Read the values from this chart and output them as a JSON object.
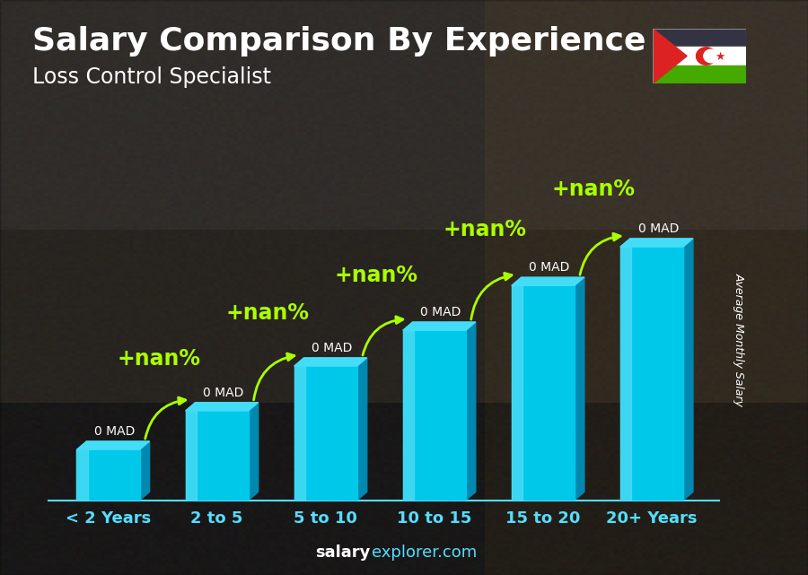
{
  "title": "Salary Comparison By Experience",
  "subtitle": "Loss Control Specialist",
  "ylabel": "Average Monthly Salary",
  "categories": [
    "< 2 Years",
    "2 to 5",
    "5 to 10",
    "10 to 15",
    "15 to 20",
    "20+ Years"
  ],
  "bar_heights": [
    0.17,
    0.3,
    0.45,
    0.57,
    0.72,
    0.85
  ],
  "labels": [
    "0 MAD",
    "0 MAD",
    "0 MAD",
    "0 MAD",
    "0 MAD",
    "0 MAD"
  ],
  "pct_label": "+nan%",
  "bar_front_color": "#00c8e8",
  "bar_light_color": "#55ddf5",
  "bar_dark_color": "#0088b0",
  "bar_top_color": "#44ddf8",
  "bg_color": "#3a3a4a",
  "title_color": "#ffffff",
  "subtitle_color": "#ffffff",
  "label_color": "#ffffff",
  "pct_color": "#aaff00",
  "arrow_color": "#aaff00",
  "watermark_bold": "salary",
  "watermark_light": "explorer.com",
  "title_fontsize": 26,
  "subtitle_fontsize": 17,
  "label_fontsize": 10,
  "pct_fontsize": 17,
  "xtick_fontsize": 13,
  "bar_width": 0.58,
  "ylim": [
    0,
    1.08
  ],
  "flag_stripes": [
    "#333344",
    "#ffffff",
    "#44aa00"
  ],
  "flag_triangle": "#dd2222"
}
